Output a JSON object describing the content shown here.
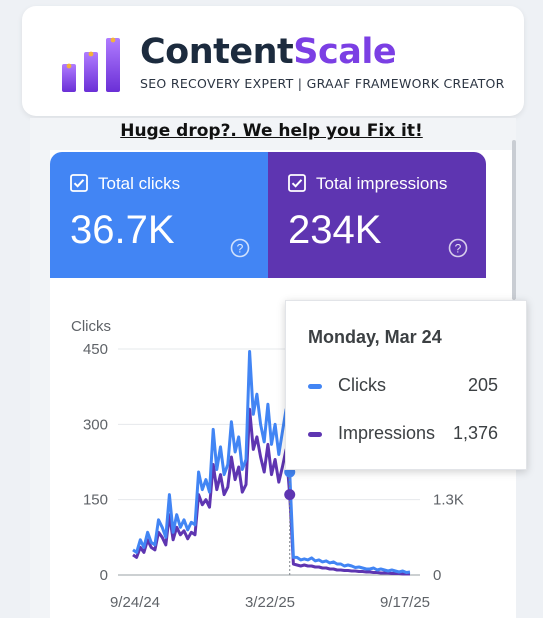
{
  "brand": {
    "name_part1": "Content",
    "name_part2": "Scale",
    "tagline": "SEO RECOVERY EXPERT | GRAAF FRAMEWORK CREATOR",
    "logo_icon": "bar-chart-icon",
    "accent": "#7b3fe4",
    "dark": "#1c2b3e"
  },
  "headline": "Huge drop?. We help you Fix it!",
  "metrics": {
    "clicks": {
      "label": "Total clicks",
      "value": "36.7K",
      "color": "#4285f4",
      "icon": "checkbox-checked-icon"
    },
    "impressions": {
      "label": "Total impressions",
      "value": "234K",
      "color": "#5e35b1",
      "icon": "checkbox-checked-icon"
    }
  },
  "tooltip": {
    "date": "Monday, Mar 24",
    "rows": [
      {
        "label": "Clicks",
        "value": "205"
      },
      {
        "label": "Impressions",
        "value": "1,376"
      }
    ]
  },
  "chart_data": {
    "type": "line",
    "ylabel": "Clicks",
    "left_ticks": [
      "0",
      "150",
      "300",
      "450"
    ],
    "right_ticks": [
      "0",
      "1.3K"
    ],
    "x_ticks": [
      "9/24/24",
      "3/22/25",
      "9/17/25"
    ],
    "ylim": [
      0,
      450
    ],
    "grid": true,
    "series": [
      {
        "name": "Clicks",
        "color": "#4285f4",
        "values": [
          50,
          45,
          70,
          55,
          85,
          65,
          60,
          110,
          95,
          75,
          160,
          85,
          120,
          95,
          110,
          90,
          105,
          100,
          205,
          170,
          190,
          165,
          290,
          210,
          255,
          200,
          220,
          305,
          245,
          275,
          210,
          230,
          445,
          320,
          360,
          300,
          265,
          340,
          260,
          300,
          240,
          285,
          330,
          205,
          35,
          35,
          30,
          32,
          30,
          34,
          28,
          30,
          26,
          28,
          24,
          26,
          22,
          22,
          18,
          20,
          18,
          15,
          16,
          14,
          12,
          12,
          14,
          10,
          12,
          10,
          8,
          10,
          8,
          6,
          8,
          5,
          6
        ]
      },
      {
        "name": "Impressions",
        "color": "#5e35b1",
        "values": [
          40,
          35,
          55,
          45,
          70,
          55,
          50,
          85,
          75,
          60,
          120,
          70,
          95,
          80,
          88,
          72,
          85,
          80,
          160,
          140,
          150,
          135,
          220,
          170,
          200,
          160,
          175,
          235,
          190,
          215,
          165,
          180,
          330,
          250,
          275,
          235,
          205,
          260,
          200,
          230,
          185,
          215,
          250,
          160,
          22,
          20,
          18,
          20,
          18,
          18,
          16,
          16,
          14,
          14,
          12,
          12,
          10,
          10,
          9,
          9,
          8,
          8,
          7,
          7,
          6,
          6,
          5,
          5,
          4,
          4,
          4,
          3,
          3,
          3,
          2,
          2,
          2
        ]
      }
    ]
  }
}
